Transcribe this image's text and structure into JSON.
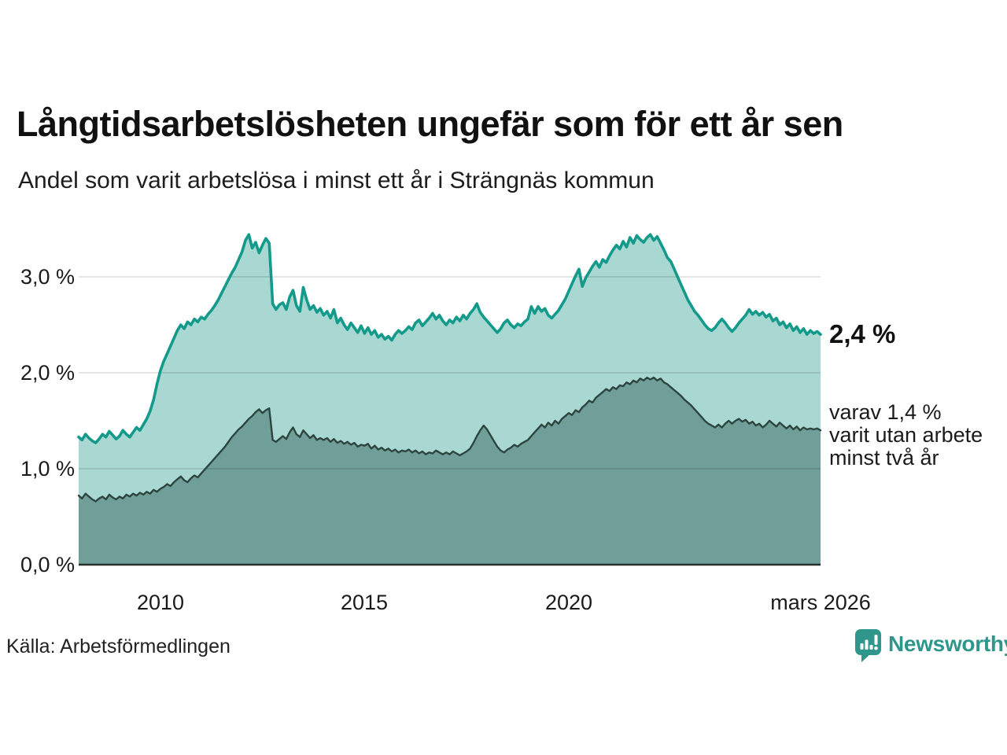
{
  "title": "Långtidsarbetslösheten ungefär som för ett år sen",
  "subtitle": "Andel som varit arbetslösa i minst ett år i Strängnäs kommun",
  "source": "Källa: Arbetsförmedlingen",
  "brand": {
    "name": "Newsworthy",
    "logo_icon": "bar-chart-speech-bubble-icon",
    "color": "#2e968a"
  },
  "annotations": {
    "total_end_label": "2,4 %",
    "secondary_lines": [
      "varav 1,4 %",
      "varit utan arbete",
      "minst två år"
    ]
  },
  "colors": {
    "line_total": "#149a8b",
    "fill_total": "#a8d8d1",
    "line_secondary": "#2e453f",
    "fill_secondary": "#6f9f98",
    "baseline": "#26302e",
    "gridline": "rgba(0,0,0,0.10)",
    "text": "#1b1b1b"
  },
  "chart_data": {
    "type": "area",
    "title": "Långtidsarbetslösheten ungefär som för ett år sen",
    "subtitle": "Andel som varit arbetslösa i minst ett år i Strängnäs kommun",
    "unit": "%",
    "grid": true,
    "x_start_year": 2008.0,
    "x_end_year": 2026.1667,
    "x_step_months": 1,
    "ylim": [
      0,
      3.6
    ],
    "y_ticks": [
      {
        "value": 0,
        "label": "0,0 %"
      },
      {
        "value": 1,
        "label": "1,0 %"
      },
      {
        "value": 2,
        "label": "2,0 %"
      },
      {
        "value": 3,
        "label": "3,0 %"
      }
    ],
    "x_ticks": [
      {
        "value": 2010,
        "label": "2010"
      },
      {
        "value": 2015,
        "label": "2015"
      },
      {
        "value": 2020,
        "label": "2020"
      },
      {
        "value": 2026.1667,
        "label": "mars 2026"
      }
    ],
    "series": [
      {
        "name": "Andel som varit arbetslösa i minst ett år",
        "end_value_label": "2,4 %",
        "line_color": "#149a8b",
        "fill_color": "#a8d8d1",
        "values": [
          1.33,
          1.3,
          1.36,
          1.32,
          1.29,
          1.27,
          1.31,
          1.36,
          1.33,
          1.39,
          1.35,
          1.31,
          1.34,
          1.4,
          1.36,
          1.33,
          1.38,
          1.43,
          1.4,
          1.46,
          1.52,
          1.6,
          1.72,
          1.88,
          2.02,
          2.12,
          2.2,
          2.28,
          2.36,
          2.44,
          2.5,
          2.46,
          2.53,
          2.5,
          2.56,
          2.53,
          2.58,
          2.56,
          2.61,
          2.65,
          2.7,
          2.76,
          2.83,
          2.9,
          2.97,
          3.04,
          3.1,
          3.18,
          3.26,
          3.38,
          3.44,
          3.3,
          3.36,
          3.25,
          3.33,
          3.4,
          3.35,
          2.72,
          2.66,
          2.71,
          2.73,
          2.66,
          2.79,
          2.86,
          2.7,
          2.64,
          2.89,
          2.76,
          2.66,
          2.7,
          2.63,
          2.67,
          2.6,
          2.64,
          2.57,
          2.66,
          2.52,
          2.57,
          2.5,
          2.45,
          2.52,
          2.47,
          2.42,
          2.49,
          2.41,
          2.47,
          2.4,
          2.44,
          2.37,
          2.4,
          2.35,
          2.38,
          2.34,
          2.4,
          2.44,
          2.41,
          2.44,
          2.48,
          2.45,
          2.52,
          2.55,
          2.49,
          2.53,
          2.57,
          2.62,
          2.56,
          2.6,
          2.54,
          2.5,
          2.55,
          2.52,
          2.58,
          2.54,
          2.6,
          2.56,
          2.62,
          2.66,
          2.72,
          2.63,
          2.58,
          2.54,
          2.5,
          2.46,
          2.42,
          2.46,
          2.52,
          2.55,
          2.5,
          2.47,
          2.51,
          2.49,
          2.53,
          2.56,
          2.69,
          2.62,
          2.69,
          2.64,
          2.67,
          2.6,
          2.57,
          2.61,
          2.65,
          2.71,
          2.77,
          2.85,
          2.93,
          3.01,
          3.08,
          2.9,
          2.99,
          3.05,
          3.11,
          3.16,
          3.1,
          3.18,
          3.15,
          3.22,
          3.28,
          3.33,
          3.29,
          3.37,
          3.31,
          3.41,
          3.35,
          3.43,
          3.39,
          3.36,
          3.41,
          3.44,
          3.38,
          3.42,
          3.35,
          3.28,
          3.2,
          3.16,
          3.08,
          3.0,
          2.92,
          2.84,
          2.76,
          2.7,
          2.64,
          2.6,
          2.55,
          2.5,
          2.46,
          2.44,
          2.47,
          2.52,
          2.56,
          2.52,
          2.47,
          2.43,
          2.47,
          2.52,
          2.56,
          2.6,
          2.66,
          2.61,
          2.64,
          2.6,
          2.63,
          2.58,
          2.61,
          2.54,
          2.57,
          2.5,
          2.53,
          2.47,
          2.51,
          2.44,
          2.48,
          2.42,
          2.46,
          2.4,
          2.44,
          2.41,
          2.43,
          2.4
        ]
      },
      {
        "name": "varav utan arbete minst två år",
        "end_value_label": "varav 1,4 % varit utan arbete minst två år",
        "line_color": "#2e453f",
        "fill_color": "#6f9f98",
        "values": [
          0.72,
          0.69,
          0.74,
          0.71,
          0.68,
          0.66,
          0.69,
          0.71,
          0.68,
          0.73,
          0.7,
          0.68,
          0.71,
          0.69,
          0.73,
          0.71,
          0.74,
          0.72,
          0.75,
          0.73,
          0.76,
          0.74,
          0.78,
          0.76,
          0.79,
          0.81,
          0.84,
          0.82,
          0.86,
          0.89,
          0.92,
          0.88,
          0.86,
          0.9,
          0.93,
          0.91,
          0.95,
          0.99,
          1.03,
          1.07,
          1.11,
          1.15,
          1.19,
          1.23,
          1.28,
          1.33,
          1.37,
          1.41,
          1.44,
          1.48,
          1.52,
          1.55,
          1.59,
          1.62,
          1.58,
          1.61,
          1.63,
          1.3,
          1.28,
          1.31,
          1.34,
          1.31,
          1.38,
          1.43,
          1.36,
          1.33,
          1.4,
          1.36,
          1.32,
          1.35,
          1.3,
          1.32,
          1.3,
          1.32,
          1.28,
          1.31,
          1.27,
          1.29,
          1.26,
          1.28,
          1.25,
          1.27,
          1.23,
          1.25,
          1.24,
          1.26,
          1.21,
          1.24,
          1.2,
          1.22,
          1.19,
          1.21,
          1.18,
          1.2,
          1.17,
          1.19,
          1.18,
          1.2,
          1.17,
          1.19,
          1.16,
          1.18,
          1.15,
          1.17,
          1.16,
          1.19,
          1.17,
          1.15,
          1.17,
          1.15,
          1.18,
          1.16,
          1.14,
          1.16,
          1.18,
          1.21,
          1.27,
          1.34,
          1.4,
          1.45,
          1.41,
          1.35,
          1.29,
          1.23,
          1.19,
          1.17,
          1.2,
          1.22,
          1.25,
          1.23,
          1.26,
          1.28,
          1.3,
          1.34,
          1.38,
          1.42,
          1.46,
          1.43,
          1.48,
          1.45,
          1.5,
          1.47,
          1.52,
          1.55,
          1.58,
          1.56,
          1.61,
          1.59,
          1.64,
          1.67,
          1.71,
          1.69,
          1.74,
          1.77,
          1.8,
          1.83,
          1.81,
          1.85,
          1.83,
          1.87,
          1.86,
          1.9,
          1.88,
          1.92,
          1.9,
          1.94,
          1.92,
          1.95,
          1.93,
          1.95,
          1.92,
          1.94,
          1.9,
          1.88,
          1.85,
          1.82,
          1.79,
          1.76,
          1.72,
          1.69,
          1.66,
          1.62,
          1.58,
          1.54,
          1.5,
          1.47,
          1.45,
          1.43,
          1.46,
          1.43,
          1.47,
          1.5,
          1.47,
          1.5,
          1.52,
          1.49,
          1.51,
          1.47,
          1.49,
          1.45,
          1.47,
          1.43,
          1.46,
          1.5,
          1.47,
          1.44,
          1.48,
          1.45,
          1.42,
          1.45,
          1.41,
          1.44,
          1.4,
          1.43,
          1.41,
          1.42,
          1.41,
          1.42,
          1.4
        ]
      }
    ]
  }
}
